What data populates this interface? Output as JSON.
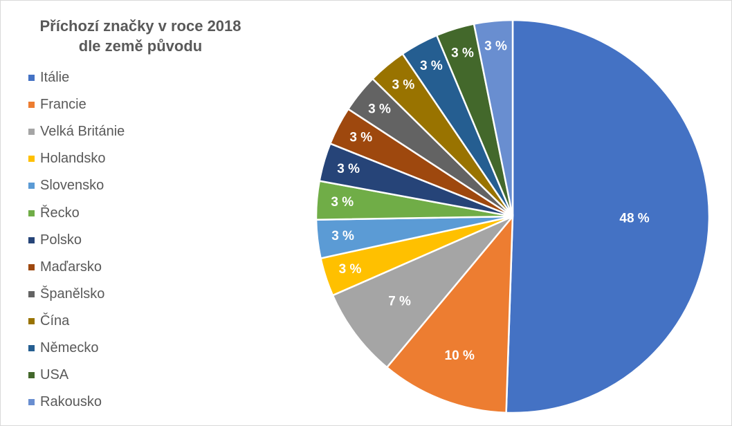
{
  "chart_data": {
    "type": "pie",
    "title_line1": "Příchozí značky v roce 2018",
    "title_line2": "dle země původu",
    "start_angle_deg": 0,
    "direction": "clockwise",
    "legend_position": "left",
    "slices": [
      {
        "name": "Itálie",
        "value": 48,
        "label": "48 %",
        "color": "#4472C4"
      },
      {
        "name": "Francie",
        "value": 10,
        "label": "10 %",
        "color": "#ED7D31"
      },
      {
        "name": "Velká Británie",
        "value": 7,
        "label": "7 %",
        "color": "#A5A5A5"
      },
      {
        "name": "Holandsko",
        "value": 3,
        "label": "3 %",
        "color": "#FFC000"
      },
      {
        "name": "Slovensko",
        "value": 3,
        "label": "3 %",
        "color": "#5B9BD5"
      },
      {
        "name": "Řecko",
        "value": 3,
        "label": "3 %",
        "color": "#70AD47"
      },
      {
        "name": "Polsko",
        "value": 3,
        "label": "3 %",
        "color": "#264478"
      },
      {
        "name": "Maďarsko",
        "value": 3,
        "label": "3 %",
        "color": "#9E480E"
      },
      {
        "name": "Španělsko",
        "value": 3,
        "label": "3 %",
        "color": "#636363"
      },
      {
        "name": "Čína",
        "value": 3,
        "label": "3 %",
        "color": "#997300"
      },
      {
        "name": "Německo",
        "value": 3,
        "label": "3 %",
        "color": "#255E91"
      },
      {
        "name": "USA",
        "value": 3,
        "label": "3 %",
        "color": "#43682B"
      },
      {
        "name": "Rakousko",
        "value": 3,
        "label": "3 %",
        "color": "#698ED0"
      }
    ]
  }
}
